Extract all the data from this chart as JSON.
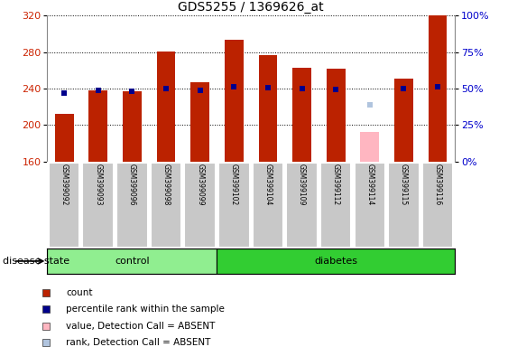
{
  "title": "GDS5255 / 1369626_at",
  "samples": [
    "GSM399092",
    "GSM399093",
    "GSM399096",
    "GSM399098",
    "GSM399099",
    "GSM399102",
    "GSM399104",
    "GSM399109",
    "GSM399112",
    "GSM399114",
    "GSM399115",
    "GSM399116"
  ],
  "groups": [
    "control",
    "control",
    "control",
    "control",
    "control",
    "diabetes",
    "diabetes",
    "diabetes",
    "diabetes",
    "diabetes",
    "diabetes",
    "diabetes"
  ],
  "count_values": [
    212,
    238,
    237,
    281,
    247,
    293,
    277,
    263,
    262,
    null,
    251,
    320
  ],
  "percentile_screen": [
    235,
    238,
    237,
    240,
    238,
    242,
    241,
    240,
    239,
    null,
    240,
    242
  ],
  "absent_value": 192,
  "absent_rank": 222,
  "absent_sample_idx": 9,
  "ylim_left": [
    160,
    320
  ],
  "ylim_right": [
    0,
    100
  ],
  "yticks_left": [
    160,
    200,
    240,
    280,
    320
  ],
  "yticks_right": [
    0,
    25,
    50,
    75,
    100
  ],
  "yticklabels_right": [
    "0%",
    "25%",
    "50%",
    "75%",
    "100%"
  ],
  "control_color": "#90EE90",
  "diabetes_color": "#32CD32",
  "bar_color": "#BB2200",
  "percentile_color": "#00008B",
  "absent_bar_color": "#FFB6C1",
  "absent_rank_color": "#B0C4DE",
  "sample_box_color": "#C8C8C8",
  "legend_items": [
    {
      "label": "count",
      "color": "#BB2200"
    },
    {
      "label": "percentile rank within the sample",
      "color": "#00008B"
    },
    {
      "label": "value, Detection Call = ABSENT",
      "color": "#FFB6C1"
    },
    {
      "label": "rank, Detection Call = ABSENT",
      "color": "#B0C4DE"
    }
  ]
}
